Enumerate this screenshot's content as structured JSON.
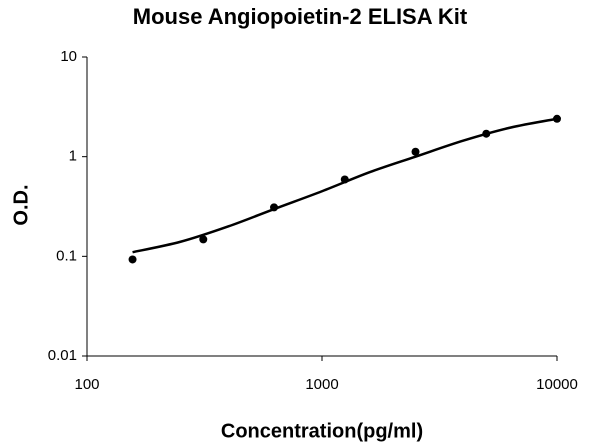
{
  "chart_data": {
    "type": "scatter",
    "title": "Mouse Angiopoietin-2 ELISA Kit",
    "x_label": "Concentration(pg/ml)",
    "y_label": "O.D.",
    "x": [
      156.25,
      312.5,
      625,
      1250,
      2500,
      5000,
      10000
    ],
    "values": [
      0.093,
      0.148,
      0.31,
      0.59,
      1.12,
      1.7,
      2.4
    ],
    "color": "#000000",
    "fit": {
      "x": [
        156.25,
        250,
        400,
        630,
        1000,
        1600,
        2500,
        4000,
        6300,
        10000
      ],
      "values": [
        0.11,
        0.14,
        0.2,
        0.3,
        0.45,
        0.7,
        1.0,
        1.45,
        1.95,
        2.4
      ],
      "color": "#000000"
    },
    "x_log": true,
    "y_log": true,
    "xlim": [
      100,
      10000
    ],
    "xticks": [
      100,
      1000,
      10000
    ],
    "ylim": [
      0.01,
      10
    ],
    "yticks": [
      0.01,
      0.1,
      1,
      10
    ],
    "grid": false
  }
}
